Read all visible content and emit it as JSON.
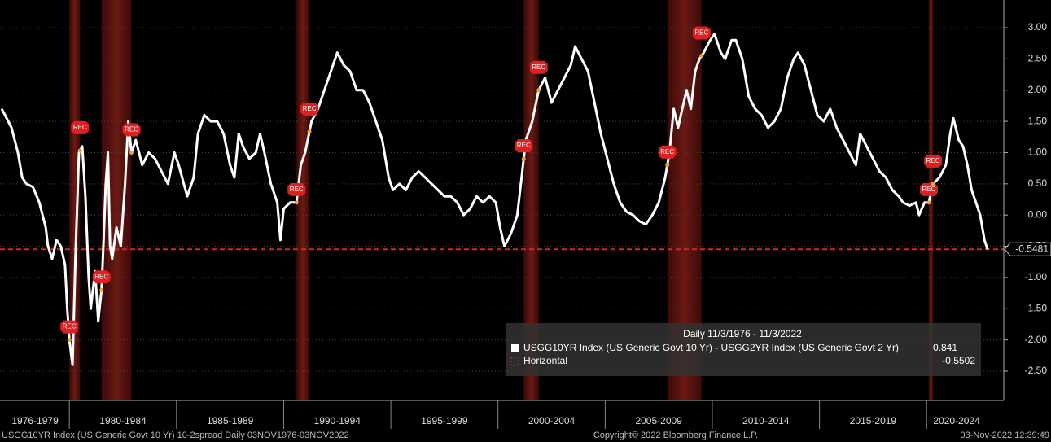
{
  "chart_data": {
    "type": "line",
    "series": [
      {
        "name": "USGG10YR Index (US Generic Govt 10 Yr) - USGG2YR Index (US Generic Govt 2 Yr)",
        "color": "#ffffff",
        "x": [
          1976.84,
          1977.0,
          1977.3,
          1977.6,
          1977.8,
          1978.0,
          1978.3,
          1978.6,
          1978.9,
          1979.0,
          1979.2,
          1979.4,
          1979.6,
          1979.8,
          1979.9,
          1980.0,
          1980.15,
          1980.3,
          1980.45,
          1980.6,
          1980.75,
          1980.9,
          1981.0,
          1981.2,
          1981.35,
          1981.5,
          1981.6,
          1981.7,
          1981.8,
          1981.9,
          1982.0,
          1982.2,
          1982.4,
          1982.6,
          1982.75,
          1982.9,
          1983.1,
          1983.4,
          1983.7,
          1984.0,
          1984.3,
          1984.6,
          1984.9,
          1985.1,
          1985.5,
          1985.8,
          1986.0,
          1986.3,
          1986.6,
          1986.9,
          1987.2,
          1987.5,
          1987.7,
          1987.9,
          1988.1,
          1988.4,
          1988.7,
          1988.9,
          1989.1,
          1989.4,
          1989.7,
          1989.85,
          1990.0,
          1990.3,
          1990.6,
          1990.8,
          1991.0,
          1991.3,
          1991.6,
          1991.9,
          1992.2,
          1992.5,
          1992.8,
          1993.1,
          1993.4,
          1993.7,
          1994.0,
          1994.3,
          1994.6,
          1994.9,
          1995.1,
          1995.4,
          1995.7,
          1996.0,
          1996.3,
          1996.6,
          1996.9,
          1997.2,
          1997.5,
          1997.8,
          1998.1,
          1998.4,
          1998.7,
          1999.0,
          1999.3,
          1999.6,
          1999.9,
          2000.1,
          2000.3,
          2000.6,
          2000.9,
          2001.1,
          2001.3,
          2001.6,
          2001.9,
          2002.2,
          2002.5,
          2002.8,
          2003.1,
          2003.4,
          2003.6,
          2003.9,
          2004.2,
          2004.5,
          2004.8,
          2005.1,
          2005.4,
          2005.7,
          2006.0,
          2006.3,
          2006.6,
          2006.9,
          2007.2,
          2007.5,
          2007.8,
          2008.0,
          2008.2,
          2008.4,
          2008.6,
          2008.8,
          2009.0,
          2009.2,
          2009.4,
          2009.6,
          2009.9,
          2010.1,
          2010.4,
          2010.6,
          2010.9,
          2011.1,
          2011.4,
          2011.7,
          2012.0,
          2012.3,
          2012.6,
          2012.9,
          2013.2,
          2013.5,
          2013.8,
          2014.0,
          2014.3,
          2014.6,
          2014.9,
          2015.2,
          2015.5,
          2015.8,
          2016.1,
          2016.4,
          2016.7,
          2016.9,
          2017.2,
          2017.5,
          2017.8,
          2018.1,
          2018.4,
          2018.7,
          2018.9,
          2019.2,
          2019.5,
          2019.65,
          2019.9,
          2020.1,
          2020.3,
          2020.6,
          2020.9,
          2021.1,
          2021.25,
          2021.5,
          2021.7,
          2021.9,
          2022.1,
          2022.3,
          2022.5,
          2022.7,
          2022.84
        ],
        "values": [
          1.7,
          1.6,
          1.4,
          1.0,
          0.6,
          0.5,
          0.45,
          0.2,
          -0.2,
          -0.5,
          -0.7,
          -0.4,
          -0.5,
          -0.8,
          -1.5,
          -2.0,
          -2.4,
          -0.5,
          1.0,
          1.1,
          0.3,
          -1.0,
          -1.5,
          -0.9,
          -1.7,
          -1.2,
          -0.4,
          0.5,
          1.0,
          -0.5,
          -0.7,
          -0.2,
          -0.5,
          0.5,
          1.5,
          1.0,
          1.2,
          0.8,
          1.0,
          0.9,
          0.7,
          0.5,
          1.0,
          0.8,
          0.3,
          0.6,
          1.3,
          1.6,
          1.5,
          1.5,
          1.3,
          0.8,
          0.6,
          1.3,
          1.1,
          0.9,
          1.0,
          1.3,
          1.0,
          0.5,
          0.2,
          -0.4,
          0.1,
          0.2,
          0.2,
          0.8,
          1.0,
          1.5,
          1.7,
          2.0,
          2.3,
          2.6,
          2.4,
          2.3,
          2.0,
          2.0,
          1.8,
          1.5,
          1.2,
          0.6,
          0.4,
          0.5,
          0.4,
          0.6,
          0.7,
          0.6,
          0.5,
          0.4,
          0.3,
          0.3,
          0.2,
          0.0,
          0.1,
          0.3,
          0.2,
          0.3,
          0.2,
          -0.2,
          -0.5,
          -0.3,
          0.0,
          0.6,
          1.2,
          1.5,
          2.0,
          2.2,
          1.8,
          2.0,
          2.2,
          2.4,
          2.7,
          2.5,
          2.3,
          1.8,
          1.3,
          0.9,
          0.5,
          0.2,
          0.05,
          0.0,
          -0.1,
          -0.15,
          0.0,
          0.2,
          0.6,
          1.0,
          1.7,
          1.4,
          1.7,
          2.0,
          1.7,
          2.3,
          2.5,
          2.6,
          2.8,
          2.9,
          2.6,
          2.5,
          2.8,
          2.8,
          2.5,
          1.9,
          1.7,
          1.6,
          1.4,
          1.5,
          1.7,
          2.2,
          2.5,
          2.6,
          2.4,
          2.0,
          1.6,
          1.5,
          1.7,
          1.4,
          1.2,
          1.0,
          0.8,
          1.3,
          1.1,
          0.9,
          0.7,
          0.6,
          0.4,
          0.3,
          0.2,
          0.15,
          0.2,
          0.0,
          0.2,
          0.2,
          0.5,
          0.6,
          0.8,
          1.3,
          1.55,
          1.2,
          1.1,
          0.8,
          0.4,
          0.2,
          0.0,
          -0.4,
          -0.55
        ]
      }
    ],
    "xlim": [
      1976.84,
      2022.84
    ],
    "xticks": [
      {
        "value": 1978.4,
        "label": "1976-1979"
      },
      {
        "value": 1982.5,
        "label": "1980-1984"
      },
      {
        "value": 1987.5,
        "label": "1985-1989"
      },
      {
        "value": 1992.5,
        "label": "1990-1994"
      },
      {
        "value": 1997.5,
        "label": "1995-1999"
      },
      {
        "value": 2002.5,
        "label": "2000-2004"
      },
      {
        "value": 2007.5,
        "label": "2005-2009"
      },
      {
        "value": 2012.5,
        "label": "2010-2014"
      },
      {
        "value": 2017.5,
        "label": "2015-2019"
      },
      {
        "value": 2021.4,
        "label": "2020-2024"
      }
    ],
    "xseparators": [
      1980,
      1985,
      1990,
      1995,
      2000,
      2005,
      2010,
      2015,
      2020
    ],
    "ylim": [
      -3.1,
      3.4
    ],
    "yticks": [
      {
        "value": 3,
        "label": "3.00"
      },
      {
        "value": 2.5,
        "label": "2.50"
      },
      {
        "value": 2,
        "label": "2.00"
      },
      {
        "value": 1.5,
        "label": "1.50"
      },
      {
        "value": 1,
        "label": "1.00"
      },
      {
        "value": 0.5,
        "label": "0.50"
      },
      {
        "value": 0,
        "label": "0.00"
      },
      {
        "value": -0.5,
        "label": "-0.50"
      },
      {
        "value": -1,
        "label": "-1.00"
      },
      {
        "value": -1.5,
        "label": "-1.50"
      },
      {
        "value": -2,
        "label": "-2.00"
      },
      {
        "value": -2.5,
        "label": "-2.50"
      }
    ],
    "grid": true,
    "recessions": [
      {
        "start": 1980.0,
        "end": 1980.5
      },
      {
        "start": 1981.5,
        "end": 1982.9
      },
      {
        "start": 1990.6,
        "end": 1991.2
      },
      {
        "start": 2001.2,
        "end": 2001.9
      },
      {
        "start": 2007.9,
        "end": 2009.5
      },
      {
        "start": 2020.1,
        "end": 2020.3
      }
    ],
    "rec_label": "REC",
    "hline": {
      "name": "Horizontal",
      "value": -0.5481,
      "color": "#e02020"
    },
    "legend_header": "Daily 11/3/1976 - 11/3/2022",
    "legend_values": [
      0.841,
      -0.5502
    ],
    "footer": {
      "left": "USGG10YR Index (US Generic Govt 10 Yr) 10-2spread  Daily 03NOV1976-03NOV2022",
      "center": "Copyright© 2022 Bloomberg Finance L.P.",
      "right": "03-Nov-2022 12:39:49"
    }
  }
}
